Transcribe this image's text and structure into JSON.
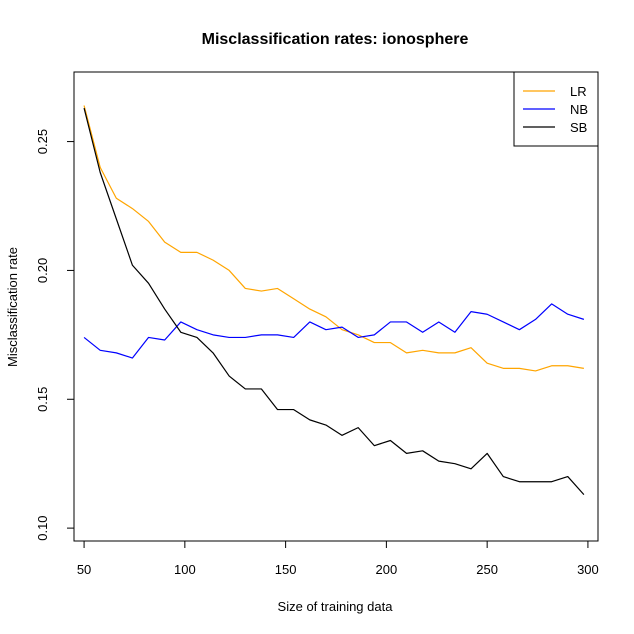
{
  "chart_data": {
    "type": "line",
    "title": "Misclassification rates: ionosphere",
    "xlabel": "Size of training data",
    "ylabel": "Misclassification rate",
    "xlim": [
      45,
      305
    ],
    "ylim": [
      0.095,
      0.277
    ],
    "x_ticks": [
      50,
      100,
      150,
      200,
      250,
      300
    ],
    "y_ticks": [
      0.1,
      0.15,
      0.2,
      0.25
    ],
    "x_tick_labels": [
      "50",
      "100",
      "150",
      "200",
      "250",
      "300"
    ],
    "y_tick_labels": [
      "0.10",
      "0.15",
      "0.20",
      "0.25"
    ],
    "grid": false,
    "legend_position": "top-right",
    "x": [
      50,
      58,
      66,
      74,
      82,
      90,
      98,
      106,
      114,
      122,
      130,
      138,
      146,
      154,
      162,
      170,
      178,
      186,
      194,
      202,
      210,
      218,
      226,
      234,
      242,
      250,
      258,
      266,
      274,
      282,
      290,
      298
    ],
    "series": [
      {
        "name": "LR",
        "color": "#FFA500",
        "values": [
          0.264,
          0.24,
          0.228,
          0.224,
          0.219,
          0.211,
          0.207,
          0.207,
          0.204,
          0.2,
          0.193,
          0.192,
          0.193,
          0.189,
          0.185,
          0.182,
          0.177,
          0.175,
          0.172,
          0.172,
          0.168,
          0.169,
          0.168,
          0.168,
          0.17,
          0.164,
          0.162,
          0.162,
          0.161,
          0.163,
          0.163,
          0.162
        ]
      },
      {
        "name": "NB",
        "color": "#0000FF",
        "values": [
          0.174,
          0.169,
          0.168,
          0.166,
          0.174,
          0.173,
          0.18,
          0.177,
          0.175,
          0.174,
          0.174,
          0.175,
          0.175,
          0.174,
          0.18,
          0.177,
          0.178,
          0.174,
          0.175,
          0.18,
          0.18,
          0.176,
          0.18,
          0.176,
          0.184,
          0.183,
          0.18,
          0.177,
          0.181,
          0.187,
          0.183,
          0.181
        ]
      },
      {
        "name": "SB",
        "color": "#000000",
        "values": [
          0.263,
          0.238,
          0.22,
          0.202,
          0.195,
          0.185,
          0.176,
          0.174,
          0.168,
          0.159,
          0.154,
          0.154,
          0.146,
          0.146,
          0.142,
          0.14,
          0.136,
          0.139,
          0.132,
          0.134,
          0.129,
          0.13,
          0.126,
          0.125,
          0.123,
          0.129,
          0.12,
          0.118,
          0.118,
          0.118,
          0.12,
          0.113
        ]
      }
    ]
  }
}
